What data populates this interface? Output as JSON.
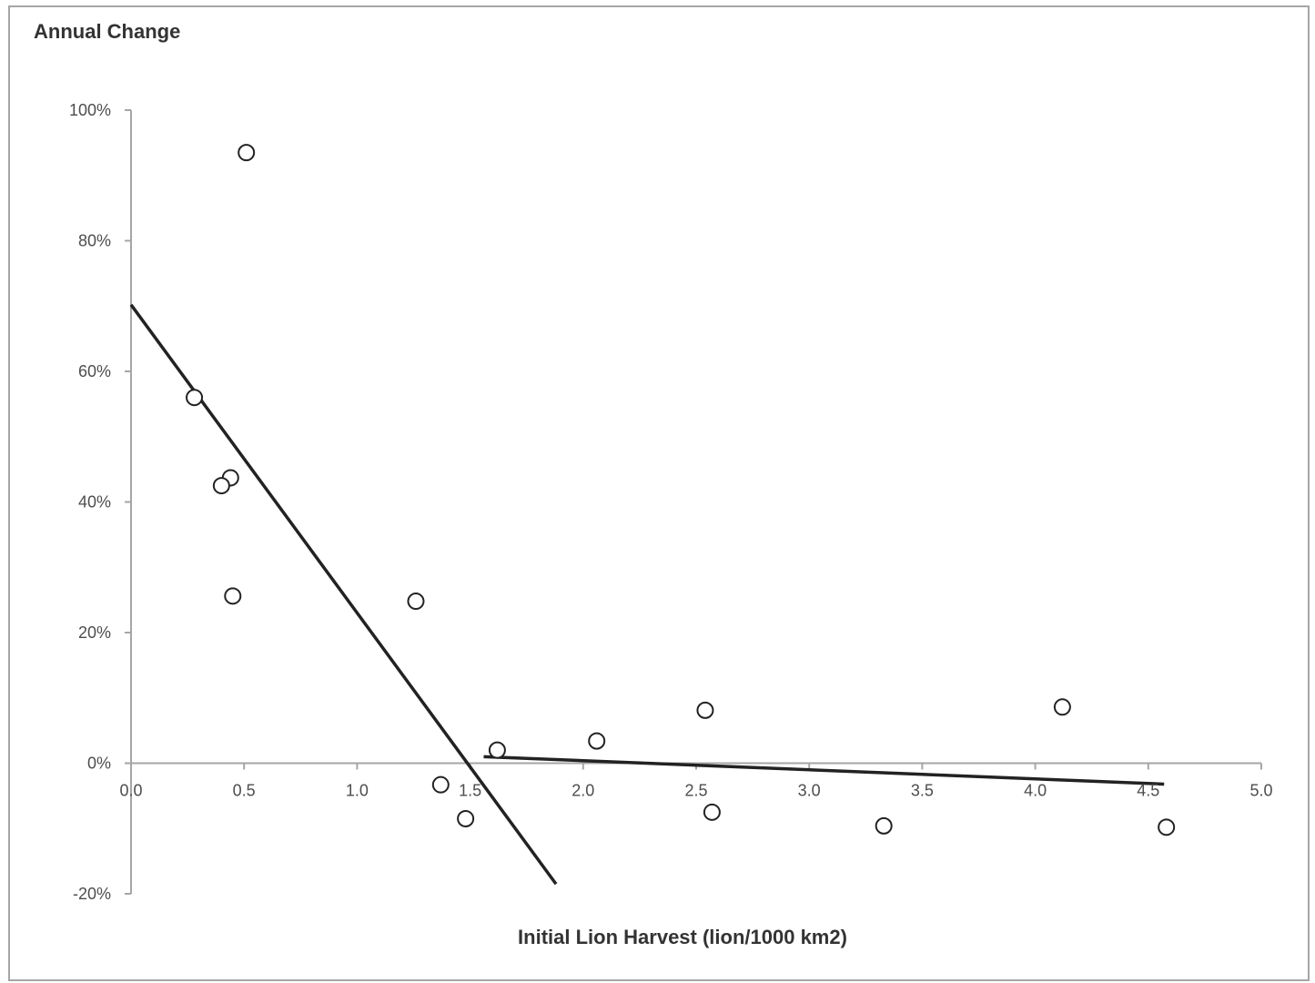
{
  "chart_data": {
    "type": "scatter",
    "title": "Annual Change",
    "xlabel": "Initial Lion Harvest (lion/1000 km2)",
    "ylabel": "",
    "xlim": [
      0,
      5
    ],
    "ylim": [
      -20,
      100
    ],
    "x_ticks": [
      "0.0",
      "0.5",
      "1.0",
      "1.5",
      "2.0",
      "2.5",
      "3.0",
      "3.5",
      "4.0",
      "4.5",
      "5.0"
    ],
    "y_ticks": [
      "100%",
      "80%",
      "60%",
      "40%",
      "20%",
      "0%",
      "-20%"
    ],
    "grid": false,
    "legend": "none",
    "series": [
      {
        "marker": "open-circle",
        "points": [
          {
            "x": 0.51,
            "y": 93.5
          },
          {
            "x": 0.28,
            "y": 56.0
          },
          {
            "x": 0.44,
            "y": 43.7
          },
          {
            "x": 0.4,
            "y": 42.5
          },
          {
            "x": 0.45,
            "y": 25.6
          },
          {
            "x": 1.26,
            "y": 24.8
          },
          {
            "x": 1.37,
            "y": -3.3
          },
          {
            "x": 1.48,
            "y": -8.5
          },
          {
            "x": 1.62,
            "y": 2.0
          },
          {
            "x": 2.06,
            "y": 3.4
          },
          {
            "x": 2.54,
            "y": 8.1
          },
          {
            "x": 2.57,
            "y": -7.5
          },
          {
            "x": 3.33,
            "y": -9.6
          },
          {
            "x": 4.12,
            "y": 8.6
          },
          {
            "x": 4.58,
            "y": -9.8
          }
        ]
      }
    ],
    "trendlines": [
      {
        "from": {
          "x": 0.0,
          "y": 70.2
        },
        "to": {
          "x": 1.88,
          "y": -18.5
        }
      },
      {
        "from": {
          "x": 1.56,
          "y": 1.0
        },
        "to": {
          "x": 4.57,
          "y": -3.2
        }
      }
    ],
    "colors": {
      "axis": "#a6a6a6",
      "line": "#222222",
      "marker_stroke": "#222222",
      "marker_fill": "#ffffff"
    }
  }
}
